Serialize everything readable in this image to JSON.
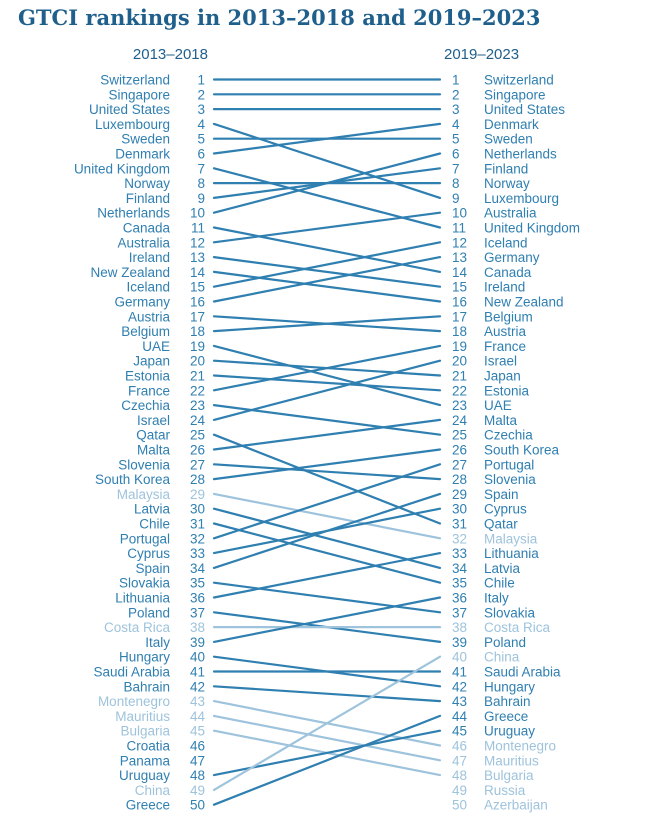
{
  "chart_data": {
    "type": "slope",
    "title": "GTCI rankings in 2013–2018 and 2019–2023",
    "left_header": "2013–2018",
    "right_header": "2019–2023",
    "colors": {
      "main": "#2f7fb1",
      "muted": "#9ec3dc",
      "title": "#1f5f8b"
    },
    "left": [
      {
        "rank": 1,
        "country": "Switzerland"
      },
      {
        "rank": 2,
        "country": "Singapore"
      },
      {
        "rank": 3,
        "country": "United States"
      },
      {
        "rank": 4,
        "country": "Luxembourg"
      },
      {
        "rank": 5,
        "country": "Sweden"
      },
      {
        "rank": 6,
        "country": "Denmark"
      },
      {
        "rank": 7,
        "country": "United Kingdom"
      },
      {
        "rank": 8,
        "country": "Norway"
      },
      {
        "rank": 9,
        "country": "Finland"
      },
      {
        "rank": 10,
        "country": "Netherlands"
      },
      {
        "rank": 11,
        "country": "Canada"
      },
      {
        "rank": 12,
        "country": "Australia"
      },
      {
        "rank": 13,
        "country": "Ireland"
      },
      {
        "rank": 14,
        "country": "New Zealand"
      },
      {
        "rank": 15,
        "country": "Iceland"
      },
      {
        "rank": 16,
        "country": "Germany"
      },
      {
        "rank": 17,
        "country": "Austria"
      },
      {
        "rank": 18,
        "country": "Belgium"
      },
      {
        "rank": 19,
        "country": "UAE"
      },
      {
        "rank": 20,
        "country": "Japan"
      },
      {
        "rank": 21,
        "country": "Estonia"
      },
      {
        "rank": 22,
        "country": "France"
      },
      {
        "rank": 23,
        "country": "Czechia"
      },
      {
        "rank": 24,
        "country": "Israel"
      },
      {
        "rank": 25,
        "country": "Qatar"
      },
      {
        "rank": 26,
        "country": "Malta"
      },
      {
        "rank": 27,
        "country": "Slovenia"
      },
      {
        "rank": 28,
        "country": "South Korea"
      },
      {
        "rank": 29,
        "country": "Malaysia",
        "muted": true
      },
      {
        "rank": 30,
        "country": "Latvia"
      },
      {
        "rank": 31,
        "country": "Chile"
      },
      {
        "rank": 32,
        "country": "Portugal"
      },
      {
        "rank": 33,
        "country": "Cyprus"
      },
      {
        "rank": 34,
        "country": "Spain"
      },
      {
        "rank": 35,
        "country": "Slovakia"
      },
      {
        "rank": 36,
        "country": "Lithuania"
      },
      {
        "rank": 37,
        "country": "Poland"
      },
      {
        "rank": 38,
        "country": "Costa Rica",
        "muted": true
      },
      {
        "rank": 39,
        "country": "Italy"
      },
      {
        "rank": 40,
        "country": "Hungary"
      },
      {
        "rank": 41,
        "country": "Saudi Arabia"
      },
      {
        "rank": 42,
        "country": "Bahrain"
      },
      {
        "rank": 43,
        "country": "Montenegro",
        "muted": true
      },
      {
        "rank": 44,
        "country": "Mauritius",
        "muted": true
      },
      {
        "rank": 45,
        "country": "Bulgaria",
        "muted": true
      },
      {
        "rank": 46,
        "country": "Croatia"
      },
      {
        "rank": 47,
        "country": "Panama"
      },
      {
        "rank": 48,
        "country": "Uruguay"
      },
      {
        "rank": 49,
        "country": "China",
        "muted": true
      },
      {
        "rank": 50,
        "country": "Greece"
      }
    ],
    "right": [
      {
        "rank": 1,
        "country": "Switzerland"
      },
      {
        "rank": 2,
        "country": "Singapore"
      },
      {
        "rank": 3,
        "country": "United States"
      },
      {
        "rank": 4,
        "country": "Denmark"
      },
      {
        "rank": 5,
        "country": "Sweden"
      },
      {
        "rank": 6,
        "country": "Netherlands"
      },
      {
        "rank": 7,
        "country": "Finland"
      },
      {
        "rank": 8,
        "country": "Norway"
      },
      {
        "rank": 9,
        "country": "Luxembourg"
      },
      {
        "rank": 10,
        "country": "Australia"
      },
      {
        "rank": 11,
        "country": "United Kingdom"
      },
      {
        "rank": 12,
        "country": "Iceland"
      },
      {
        "rank": 13,
        "country": "Germany"
      },
      {
        "rank": 14,
        "country": "Canada"
      },
      {
        "rank": 15,
        "country": "Ireland"
      },
      {
        "rank": 16,
        "country": "New Zealand"
      },
      {
        "rank": 17,
        "country": "Belgium"
      },
      {
        "rank": 18,
        "country": "Austria"
      },
      {
        "rank": 19,
        "country": "France"
      },
      {
        "rank": 20,
        "country": "Israel"
      },
      {
        "rank": 21,
        "country": "Japan"
      },
      {
        "rank": 22,
        "country": "Estonia"
      },
      {
        "rank": 23,
        "country": "UAE"
      },
      {
        "rank": 24,
        "country": "Malta"
      },
      {
        "rank": 25,
        "country": "Czechia"
      },
      {
        "rank": 26,
        "country": "South Korea"
      },
      {
        "rank": 27,
        "country": "Portugal"
      },
      {
        "rank": 28,
        "country": "Slovenia"
      },
      {
        "rank": 29,
        "country": "Spain"
      },
      {
        "rank": 30,
        "country": "Cyprus"
      },
      {
        "rank": 31,
        "country": "Qatar"
      },
      {
        "rank": 32,
        "country": "Malaysia",
        "muted": true
      },
      {
        "rank": 33,
        "country": "Lithuania"
      },
      {
        "rank": 34,
        "country": "Latvia"
      },
      {
        "rank": 35,
        "country": "Chile"
      },
      {
        "rank": 36,
        "country": "Italy"
      },
      {
        "rank": 37,
        "country": "Slovakia"
      },
      {
        "rank": 38,
        "country": "Costa Rica",
        "muted": true
      },
      {
        "rank": 39,
        "country": "Poland"
      },
      {
        "rank": 40,
        "country": "China",
        "muted": true
      },
      {
        "rank": 41,
        "country": "Saudi Arabia"
      },
      {
        "rank": 42,
        "country": "Hungary"
      },
      {
        "rank": 43,
        "country": "Bahrain"
      },
      {
        "rank": 44,
        "country": "Greece"
      },
      {
        "rank": 45,
        "country": "Uruguay"
      },
      {
        "rank": 46,
        "country": "Montenegro",
        "muted": true
      },
      {
        "rank": 47,
        "country": "Mauritius",
        "muted": true
      },
      {
        "rank": 48,
        "country": "Bulgaria",
        "muted": true
      },
      {
        "rank": 49,
        "country": "Russia",
        "muted": true
      },
      {
        "rank": 50,
        "country": "Azerbaijan",
        "muted": true
      }
    ]
  }
}
